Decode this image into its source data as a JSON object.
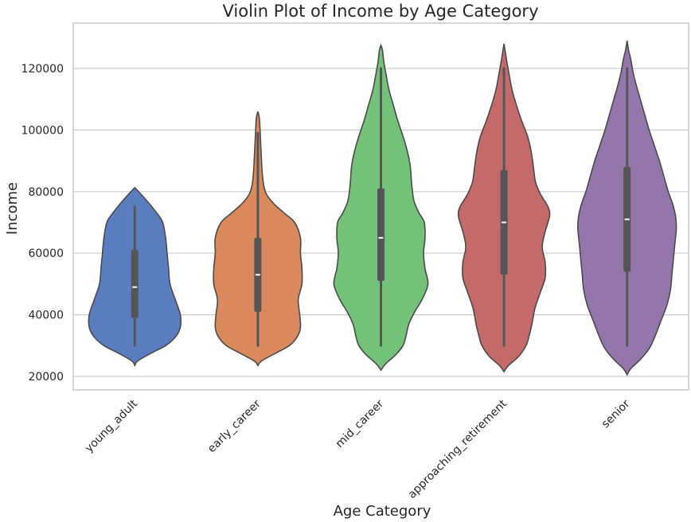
{
  "chart_data": {
    "type": "violin",
    "title": "Violin Plot of Income by Age Category",
    "xlabel": "Age Category",
    "ylabel": "Income",
    "ylim": [
      15500,
      135000
    ],
    "yticks": [
      20000,
      40000,
      60000,
      80000,
      100000,
      120000
    ],
    "grid": true,
    "series": [
      {
        "name": "young_adult",
        "color": "#5a7dbf",
        "min": 30000,
        "q1": 39000,
        "median": 49000,
        "q3": 61000,
        "max": 75000,
        "density": [
          [
            23500,
            0
          ],
          [
            25000,
            4
          ],
          [
            27500,
            22
          ],
          [
            30000,
            42
          ],
          [
            33000,
            56
          ],
          [
            36000,
            62
          ],
          [
            40000,
            62
          ],
          [
            45000,
            55
          ],
          [
            50000,
            48
          ],
          [
            55000,
            46
          ],
          [
            60000,
            44
          ],
          [
            65000,
            42
          ],
          [
            70000,
            38
          ],
          [
            73000,
            30
          ],
          [
            76000,
            20
          ],
          [
            79000,
            9
          ],
          [
            81300,
            0
          ]
        ]
      },
      {
        "name": "early_career",
        "color": "#d9895b",
        "min": 30000,
        "q1": 41000,
        "median": 53000,
        "q3": 65000,
        "max": 99000,
        "density": [
          [
            23500,
            0
          ],
          [
            25000,
            5
          ],
          [
            27500,
            24
          ],
          [
            30000,
            43
          ],
          [
            33000,
            54
          ],
          [
            36000,
            58
          ],
          [
            40000,
            57
          ],
          [
            45000,
            55
          ],
          [
            50000,
            60
          ],
          [
            55000,
            60
          ],
          [
            60000,
            58
          ],
          [
            65000,
            58
          ],
          [
            70000,
            50
          ],
          [
            73000,
            36
          ],
          [
            76000,
            22
          ],
          [
            79000,
            12
          ],
          [
            82000,
            8
          ],
          [
            86000,
            6
          ],
          [
            90000,
            5
          ],
          [
            95000,
            4
          ],
          [
            100000,
            3
          ],
          [
            104000,
            2
          ],
          [
            106000,
            0
          ]
        ]
      },
      {
        "name": "mid_career",
        "color": "#74c17a",
        "min": 30000,
        "q1": 51000,
        "median": 65000,
        "q3": 81000,
        "max": 120000,
        "density": [
          [
            22000,
            0
          ],
          [
            24000,
            6
          ],
          [
            27000,
            20
          ],
          [
            30000,
            30
          ],
          [
            33000,
            34
          ],
          [
            37000,
            38
          ],
          [
            41000,
            46
          ],
          [
            45000,
            56
          ],
          [
            50000,
            64
          ],
          [
            55000,
            60
          ],
          [
            60000,
            58
          ],
          [
            65000,
            60
          ],
          [
            70000,
            59
          ],
          [
            73000,
            52
          ],
          [
            77000,
            45
          ],
          [
            82000,
            42
          ],
          [
            88000,
            40
          ],
          [
            93000,
            36
          ],
          [
            98000,
            30
          ],
          [
            103000,
            23
          ],
          [
            108000,
            17
          ],
          [
            113000,
            11
          ],
          [
            118000,
            7
          ],
          [
            122000,
            4
          ],
          [
            126000,
            2
          ],
          [
            127500,
            0
          ]
        ]
      },
      {
        "name": "approaching_retirement",
        "color": "#c56a6b",
        "min": 30000,
        "q1": 53000,
        "median": 70000,
        "q3": 87000,
        "max": 120000,
        "density": [
          [
            21500,
            0
          ],
          [
            23500,
            6
          ],
          [
            26500,
            20
          ],
          [
            30000,
            30
          ],
          [
            33000,
            34
          ],
          [
            37000,
            38
          ],
          [
            42000,
            42
          ],
          [
            47000,
            49
          ],
          [
            52000,
            56
          ],
          [
            57000,
            56
          ],
          [
            62000,
            52
          ],
          [
            67000,
            56
          ],
          [
            72000,
            62
          ],
          [
            75000,
            60
          ],
          [
            79000,
            50
          ],
          [
            83000,
            43
          ],
          [
            88000,
            40
          ],
          [
            93000,
            37
          ],
          [
            98000,
            32
          ],
          [
            103000,
            24
          ],
          [
            108000,
            17
          ],
          [
            113000,
            11
          ],
          [
            118000,
            7
          ],
          [
            122000,
            4
          ],
          [
            125000,
            2
          ],
          [
            128000,
            0
          ]
        ]
      },
      {
        "name": "senior",
        "color": "#9376ab",
        "min": 30000,
        "q1": 54000,
        "median": 71000,
        "q3": 88000,
        "max": 120000,
        "density": [
          [
            20500,
            0
          ],
          [
            22500,
            5
          ],
          [
            25500,
            18
          ],
          [
            29000,
            30
          ],
          [
            33000,
            38
          ],
          [
            38000,
            46
          ],
          [
            43000,
            54
          ],
          [
            48000,
            59
          ],
          [
            53000,
            61
          ],
          [
            58000,
            63
          ],
          [
            63000,
            65
          ],
          [
            68000,
            67
          ],
          [
            72000,
            66
          ],
          [
            76000,
            62
          ],
          [
            80000,
            56
          ],
          [
            85000,
            50
          ],
          [
            90000,
            44
          ],
          [
            95000,
            37
          ],
          [
            100000,
            30
          ],
          [
            105000,
            24
          ],
          [
            110000,
            18
          ],
          [
            115000,
            12
          ],
          [
            119000,
            8
          ],
          [
            123000,
            5
          ],
          [
            126000,
            2
          ],
          [
            129000,
            0
          ]
        ]
      }
    ]
  }
}
